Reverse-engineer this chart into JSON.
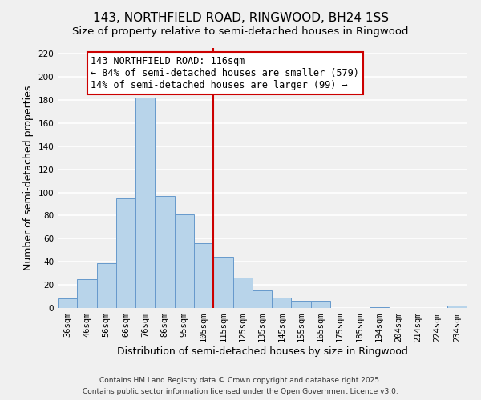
{
  "title": "143, NORTHFIELD ROAD, RINGWOOD, BH24 1SS",
  "subtitle": "Size of property relative to semi-detached houses in Ringwood",
  "xlabel": "Distribution of semi-detached houses by size in Ringwood",
  "ylabel": "Number of semi-detached properties",
  "categories": [
    "36sqm",
    "46sqm",
    "56sqm",
    "66sqm",
    "76sqm",
    "86sqm",
    "95sqm",
    "105sqm",
    "115sqm",
    "125sqm",
    "135sqm",
    "145sqm",
    "155sqm",
    "165sqm",
    "175sqm",
    "185sqm",
    "194sqm",
    "204sqm",
    "214sqm",
    "224sqm",
    "234sqm"
  ],
  "values": [
    8,
    25,
    39,
    95,
    182,
    97,
    81,
    56,
    44,
    26,
    15,
    9,
    6,
    6,
    0,
    0,
    1,
    0,
    0,
    0,
    2
  ],
  "bar_color": "#b8d4ea",
  "bar_edge_color": "#6699cc",
  "vline_color": "#cc0000",
  "annotation_line1": "143 NORTHFIELD ROAD: 116sqm",
  "annotation_line2": "← 84% of semi-detached houses are smaller (579)",
  "annotation_line3": "14% of semi-detached houses are larger (99) →",
  "annotation_box_color": "#ffffff",
  "annotation_box_edge": "#cc0000",
  "ylim": [
    0,
    225
  ],
  "yticks": [
    0,
    20,
    40,
    60,
    80,
    100,
    120,
    140,
    160,
    180,
    200,
    220
  ],
  "footer1": "Contains HM Land Registry data © Crown copyright and database right 2025.",
  "footer2": "Contains public sector information licensed under the Open Government Licence v3.0.",
  "bg_color": "#f0f0f0",
  "grid_color": "#ffffff",
  "title_fontsize": 11,
  "subtitle_fontsize": 9.5,
  "axis_label_fontsize": 9,
  "tick_fontsize": 7.5,
  "annotation_fontsize": 8.5,
  "footer_fontsize": 6.5
}
